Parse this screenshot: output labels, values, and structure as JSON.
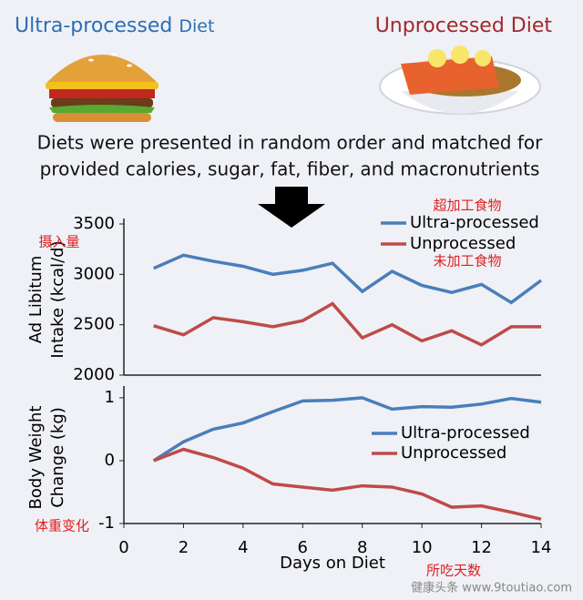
{
  "header": {
    "left_title": "Ultra-processed",
    "left_suffix": "Diet",
    "right_title": "Unprocessed Diet",
    "description_lines": [
      "Diets were presented in random order and matched for",
      "provided calories, sugar, fat, fiber, and macronutrients"
    ]
  },
  "chart_data": [
    {
      "type": "line",
      "ylabel": [
        "Ad Libitum",
        "Intake (kcal/d)"
      ],
      "xlim": [
        0,
        14
      ],
      "ylim": [
        2000,
        3500
      ],
      "yticks": [
        2000,
        2500,
        3000,
        3500
      ],
      "x": [
        1,
        2,
        3,
        4,
        5,
        6,
        7,
        8,
        9,
        10,
        11,
        12,
        13,
        14
      ],
      "series": [
        {
          "name": "Ultra-processed",
          "color": "#4a7ebb",
          "values": [
            3060,
            3190,
            3130,
            3080,
            3000,
            3040,
            3110,
            2830,
            3030,
            2890,
            2820,
            2900,
            2720,
            2940
          ]
        },
        {
          "name": "Unprocessed",
          "color": "#be4b48",
          "values": [
            2490,
            2400,
            2570,
            2530,
            2480,
            2540,
            2710,
            2370,
            2500,
            2340,
            2440,
            2300,
            2480,
            2480
          ]
        }
      ],
      "annotations": [
        "摄入量",
        "超加工食物",
        "未加工食物"
      ]
    },
    {
      "type": "line",
      "ylabel": [
        "Body Weight",
        "Change (kg)"
      ],
      "xlabel": "Days on Diet",
      "xlim": [
        0,
        14
      ],
      "xticks": [
        0,
        2,
        4,
        6,
        8,
        10,
        12,
        14
      ],
      "ylim": [
        -1,
        1.1
      ],
      "yticks": [
        -1,
        0,
        1
      ],
      "x": [
        1,
        2,
        3,
        4,
        5,
        6,
        7,
        8,
        9,
        10,
        11,
        12,
        13,
        14
      ],
      "series": [
        {
          "name": "Ultra-processed",
          "color": "#4a7ebb",
          "values": [
            0,
            0.3,
            0.5,
            0.6,
            0.78,
            0.95,
            0.96,
            1.0,
            0.82,
            0.86,
            0.85,
            0.9,
            0.99,
            0.93
          ]
        },
        {
          "name": "Unprocessed",
          "color": "#be4b48",
          "values": [
            0,
            0.18,
            0.05,
            -0.12,
            -0.37,
            -0.42,
            -0.47,
            -0.4,
            -0.42,
            -0.53,
            -0.74,
            -0.72,
            -0.82,
            -0.93
          ]
        }
      ],
      "annotations": [
        "体重变化",
        "所吃天数"
      ]
    }
  ],
  "watermark": "健康头条 www.9toutiao.com"
}
